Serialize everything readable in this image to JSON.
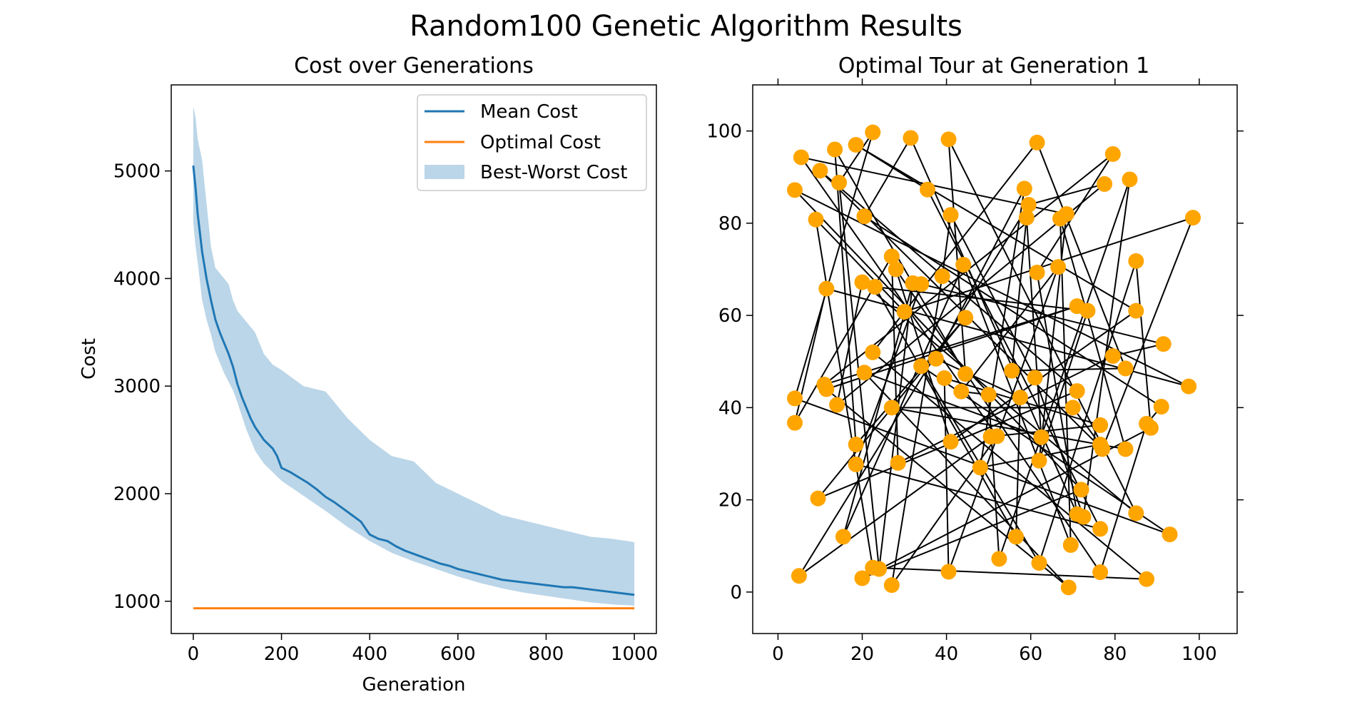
{
  "figure": {
    "suptitle": "Random100 Genetic Algorithm Results",
    "background": "#ffffff"
  },
  "chart_data": [
    {
      "type": "line",
      "title": "Cost over Generations",
      "xlabel": "Generation",
      "ylabel": "Cost",
      "xlim": [
        -50,
        1050
      ],
      "ylim": [
        700,
        5800
      ],
      "xticks": [
        0,
        200,
        400,
        600,
        800,
        1000
      ],
      "yticks": [
        1000,
        2000,
        3000,
        4000,
        5000
      ],
      "grid": false,
      "legend": {
        "placement": "upper right",
        "entries": [
          {
            "label": "Mean Cost",
            "kind": "line",
            "color": "#1f77b4"
          },
          {
            "label": "Optimal Cost",
            "kind": "line",
            "color": "#ff7f0e"
          },
          {
            "label": "Best-Worst Cost",
            "kind": "patch",
            "color": "#bcd4e6"
          }
        ]
      },
      "series": [
        {
          "name": "Mean Cost",
          "color": "#1f77b4",
          "x": [
            0,
            5,
            10,
            20,
            30,
            40,
            50,
            60,
            70,
            80,
            90,
            100,
            110,
            120,
            130,
            140,
            150,
            160,
            170,
            180,
            190,
            200,
            220,
            240,
            260,
            280,
            300,
            320,
            340,
            360,
            380,
            400,
            420,
            440,
            460,
            480,
            500,
            520,
            540,
            560,
            580,
            600,
            620,
            640,
            660,
            680,
            700,
            720,
            740,
            760,
            780,
            800,
            820,
            840,
            860,
            880,
            900,
            920,
            940,
            960,
            980,
            1000
          ],
          "y": [
            5050,
            4850,
            4600,
            4250,
            4000,
            3800,
            3620,
            3500,
            3400,
            3300,
            3180,
            3020,
            2900,
            2800,
            2700,
            2620,
            2560,
            2500,
            2460,
            2420,
            2350,
            2240,
            2200,
            2150,
            2100,
            2040,
            1970,
            1920,
            1860,
            1800,
            1740,
            1620,
            1580,
            1560,
            1510,
            1470,
            1440,
            1410,
            1380,
            1350,
            1330,
            1300,
            1280,
            1260,
            1240,
            1220,
            1200,
            1190,
            1180,
            1170,
            1160,
            1150,
            1140,
            1130,
            1130,
            1120,
            1110,
            1100,
            1090,
            1080,
            1070,
            1060
          ]
        },
        {
          "name": "Optimal Cost",
          "color": "#ff7f0e",
          "x": [
            0,
            1000
          ],
          "y": [
            935,
            935
          ]
        }
      ],
      "band": {
        "name": "Best-Worst Cost",
        "color": "#1f77b4",
        "opacity": 0.3,
        "x": [
          0,
          5,
          10,
          20,
          30,
          40,
          50,
          60,
          70,
          80,
          90,
          100,
          120,
          140,
          160,
          180,
          200,
          250,
          300,
          350,
          400,
          450,
          500,
          550,
          600,
          650,
          700,
          750,
          800,
          850,
          900,
          950,
          1000
        ],
        "lower": [
          4520,
          4300,
          4150,
          3800,
          3620,
          3480,
          3320,
          3220,
          3120,
          3040,
          2960,
          2850,
          2600,
          2400,
          2280,
          2200,
          2120,
          1980,
          1840,
          1690,
          1560,
          1450,
          1370,
          1300,
          1230,
          1170,
          1120,
          1080,
          1050,
          1020,
          990,
          970,
          960
        ],
        "upper": [
          5600,
          5500,
          5300,
          5100,
          4700,
          4300,
          4100,
          4050,
          4000,
          3950,
          3800,
          3700,
          3600,
          3500,
          3300,
          3200,
          3150,
          3000,
          2950,
          2700,
          2500,
          2350,
          2300,
          2100,
          2000,
          1900,
          1800,
          1750,
          1700,
          1650,
          1600,
          1580,
          1550
        ]
      }
    },
    {
      "type": "scatter",
      "title": "Optimal Tour at Generation 1",
      "xlim": [
        -6,
        109
      ],
      "ylim": [
        -9,
        110
      ],
      "xticks": [
        0,
        20,
        40,
        60,
        80,
        100
      ],
      "yticks": [
        0,
        20,
        40,
        60,
        80,
        100
      ],
      "grid": false,
      "point_color": "#ffa500",
      "line_color": "#000000",
      "tour_closed": true,
      "points": [
        [
          22.5,
          99.7
        ],
        [
          31.5,
          98.5
        ],
        [
          40.5,
          98.2
        ],
        [
          61.5,
          97.5
        ],
        [
          18.5,
          97.0
        ],
        [
          13.5,
          96.0
        ],
        [
          79.5,
          95.0
        ],
        [
          5.5,
          94.3
        ],
        [
          10.0,
          91.4
        ],
        [
          83.5,
          89.5
        ],
        [
          14.5,
          88.8
        ],
        [
          77.5,
          88.5
        ],
        [
          4.0,
          87.2
        ],
        [
          35.5,
          87.3
        ],
        [
          58.5,
          87.5
        ],
        [
          59.5,
          84.0
        ],
        [
          41.0,
          81.8
        ],
        [
          20.5,
          81.5
        ],
        [
          68.5,
          82.0
        ],
        [
          59.0,
          81.2
        ],
        [
          67.0,
          81.0
        ],
        [
          9.0,
          80.8
        ],
        [
          98.5,
          81.2
        ],
        [
          27.0,
          72.8
        ],
        [
          85.0,
          71.8
        ],
        [
          66.5,
          70.5
        ],
        [
          28.0,
          70.0
        ],
        [
          61.5,
          69.3
        ],
        [
          39.0,
          68.5
        ],
        [
          32.0,
          67.0
        ],
        [
          34.0,
          66.8
        ],
        [
          20.0,
          67.2
        ],
        [
          23.0,
          66.2
        ],
        [
          11.5,
          65.8
        ],
        [
          71.0,
          62.0
        ],
        [
          73.5,
          61.0
        ],
        [
          30.0,
          60.8
        ],
        [
          85.0,
          61.0
        ],
        [
          44.5,
          59.5
        ],
        [
          91.5,
          53.8
        ],
        [
          22.5,
          52.0
        ],
        [
          79.5,
          51.2
        ],
        [
          37.5,
          50.6
        ],
        [
          34.0,
          49.0
        ],
        [
          55.5,
          48.0
        ],
        [
          82.5,
          48.5
        ],
        [
          20.5,
          47.6
        ],
        [
          44.5,
          47.3
        ],
        [
          39.5,
          46.4
        ],
        [
          61.0,
          46.5
        ],
        [
          11.0,
          45.0
        ],
        [
          97.5,
          44.6
        ],
        [
          11.5,
          44.0
        ],
        [
          43.5,
          43.5
        ],
        [
          71.0,
          43.6
        ],
        [
          50.0,
          42.8
        ],
        [
          57.5,
          42.2
        ],
        [
          4.0,
          42.0
        ],
        [
          14.0,
          40.6
        ],
        [
          27.0,
          40.0
        ],
        [
          70.0,
          40.0
        ],
        [
          91.0,
          40.2
        ],
        [
          4.0,
          36.7
        ],
        [
          76.5,
          36.2
        ],
        [
          87.5,
          36.5
        ],
        [
          88.5,
          35.6
        ],
        [
          50.5,
          33.7
        ],
        [
          52.0,
          33.8
        ],
        [
          62.5,
          33.6
        ],
        [
          41.0,
          32.6
        ],
        [
          18.5,
          32.0
        ],
        [
          76.5,
          32.0
        ],
        [
          77.0,
          31.0
        ],
        [
          82.5,
          31.0
        ],
        [
          62.0,
          28.5
        ],
        [
          18.5,
          27.7
        ],
        [
          28.5,
          28.0
        ],
        [
          72.0,
          22.2
        ],
        [
          9.5,
          20.3
        ],
        [
          71.0,
          16.9
        ],
        [
          72.5,
          16.3
        ],
        [
          85.0,
          17.1
        ],
        [
          76.5,
          13.7
        ],
        [
          93.0,
          12.5
        ],
        [
          15.5,
          12.0
        ],
        [
          56.5,
          12.0
        ],
        [
          69.5,
          10.2
        ],
        [
          52.5,
          7.2
        ],
        [
          62.0,
          6.3
        ],
        [
          22.5,
          5.3
        ],
        [
          24.0,
          5.0
        ],
        [
          40.5,
          4.4
        ],
        [
          76.5,
          4.3
        ],
        [
          5.0,
          3.5
        ],
        [
          20.0,
          3.0
        ],
        [
          87.5,
          2.8
        ],
        [
          27.0,
          1.5
        ],
        [
          69.0,
          1.0
        ],
        [
          44.0,
          71.0
        ],
        [
          48.0,
          27.0
        ]
      ],
      "tour": [
        0,
        57,
        83,
        43,
        88,
        24,
        65,
        94,
        77,
        12,
        51,
        33,
        62,
        23,
        76,
        41,
        39,
        30,
        75,
        82,
        13,
        4,
        37,
        69,
        26,
        92,
        64,
        61,
        17,
        1,
        79,
        27,
        6,
        50,
        34,
        52,
        97,
        46,
        68,
        19,
        44,
        45,
        3,
        40,
        95,
        89,
        21,
        36,
        22,
        72,
        8,
        54,
        78,
        38,
        70,
        5,
        47,
        2,
        81,
        31,
        58,
        11,
        15,
        93,
        66,
        63,
        48,
        91,
        25,
        53,
        55,
        87,
        9,
        80,
        49,
        16,
        28,
        96,
        67,
        7,
        18,
        74,
        35,
        32,
        85,
        56,
        42,
        14,
        99,
        71,
        60,
        59,
        73,
        20,
        86,
        98,
        84,
        29,
        90,
        10
      ]
    }
  ]
}
